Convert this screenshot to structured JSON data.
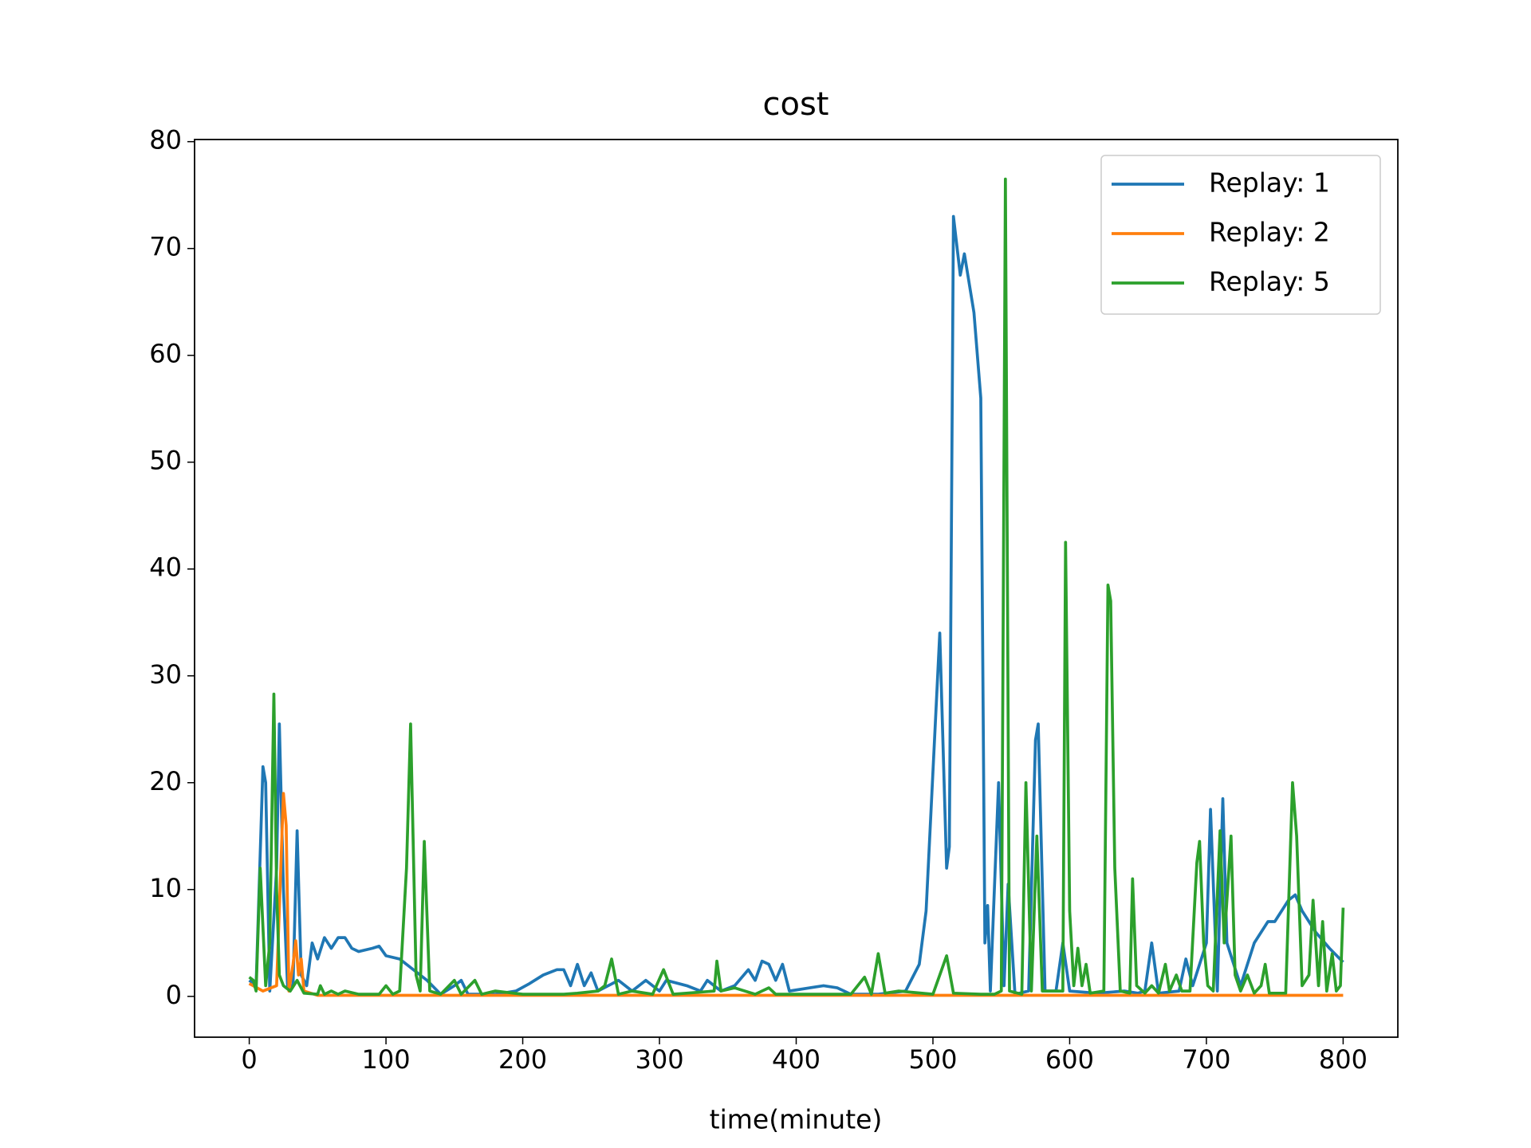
{
  "chart_data": {
    "type": "line",
    "title": "cost",
    "x_label": "time(minute)",
    "xlim": [
      -40,
      840
    ],
    "ylim": [
      -3.82,
      80.2
    ],
    "xticks": [
      0,
      100,
      200,
      300,
      400,
      500,
      600,
      700,
      800
    ],
    "yticks": [
      0,
      10,
      20,
      30,
      40,
      50,
      60,
      70,
      80
    ],
    "legend": "upper right",
    "grid": false,
    "series": [
      {
        "name": "Replay: 1",
        "color": "#1f77b4",
        "x": [
          0,
          5,
          10,
          12,
          15,
          20,
          22,
          25,
          28,
          32,
          35,
          38,
          42,
          46,
          50,
          55,
          60,
          65,
          70,
          75,
          80,
          90,
          95,
          100,
          110,
          120,
          130,
          140,
          150,
          155,
          160,
          180,
          195,
          205,
          215,
          225,
          230,
          235,
          240,
          245,
          250,
          255,
          270,
          280,
          290,
          300,
          305,
          320,
          330,
          335,
          345,
          355,
          365,
          370,
          375,
          380,
          385,
          390,
          395,
          410,
          420,
          430,
          440,
          460,
          480,
          490,
          495,
          505,
          510,
          512,
          515,
          520,
          523,
          530,
          535,
          538,
          540,
          542,
          548,
          552,
          555,
          560,
          570,
          575,
          577,
          582,
          590,
          595,
          600,
          620,
          640,
          650,
          655,
          660,
          665,
          680,
          685,
          690,
          700,
          703,
          708,
          712,
          715,
          725,
          730,
          735,
          745,
          750,
          755,
          760,
          765,
          770,
          780,
          790,
          800
        ],
        "values": [
          1.5,
          1,
          21.5,
          20,
          0.5,
          12,
          25.5,
          10,
          1,
          1,
          15.5,
          2,
          1,
          5,
          3.5,
          5.5,
          4.5,
          5.5,
          5.5,
          4.5,
          4.2,
          4.5,
          4.7,
          3.8,
          3.5,
          2.5,
          1.5,
          0.2,
          1,
          1.5,
          0.2,
          0.2,
          0.5,
          1.2,
          2,
          2.5,
          2.5,
          1,
          3,
          1,
          2.2,
          0.5,
          1.5,
          0.5,
          1.5,
          0.5,
          1.5,
          1,
          0.5,
          1.5,
          0.5,
          1,
          2.5,
          1.5,
          3.3,
          3,
          1.5,
          3,
          0.5,
          0.8,
          1,
          0.8,
          0.2,
          0.2,
          0.5,
          3,
          8,
          34,
          12,
          14,
          73,
          67.5,
          69.5,
          64,
          56,
          5,
          8.5,
          0.5,
          20,
          1,
          10.5,
          0.2,
          0.5,
          24,
          25.5,
          0.5,
          0.5,
          5,
          0.5,
          0.3,
          0.5,
          0.3,
          0.5,
          5,
          0.3,
          0.5,
          3.5,
          1,
          5,
          17.5,
          0.5,
          18.5,
          5,
          1,
          3,
          5,
          7,
          7,
          8,
          9,
          9.5,
          8,
          6,
          4.5,
          3.2
        ]
      },
      {
        "name": "Replay: 2",
        "color": "#ff7f0e",
        "x": [
          0,
          10,
          20,
          25,
          27,
          29,
          32,
          34,
          36,
          38,
          40,
          50,
          800
        ],
        "values": [
          1.2,
          0.5,
          1,
          19,
          16,
          0.5,
          3,
          5.2,
          2,
          3.5,
          0.5,
          0.1,
          0.1
        ]
      },
      {
        "name": "Replay: 5",
        "color": "#2ca02c",
        "x": [
          0,
          3,
          5,
          8,
          12,
          15,
          18,
          20,
          22,
          25,
          30,
          35,
          40,
          50,
          52,
          55,
          60,
          65,
          70,
          80,
          95,
          100,
          105,
          110,
          115,
          118,
          122,
          125,
          128,
          132,
          140,
          150,
          155,
          165,
          170,
          180,
          200,
          230,
          240,
          255,
          260,
          265,
          270,
          280,
          295,
          303,
          310,
          340,
          342,
          345,
          355,
          370,
          380,
          385,
          400,
          440,
          450,
          455,
          460,
          465,
          475,
          500,
          510,
          515,
          535,
          545,
          550,
          553,
          556,
          565,
          568,
          572,
          576,
          580,
          588,
          595,
          597,
          600,
          603,
          606,
          609,
          612,
          615,
          625,
          628,
          630,
          633,
          637,
          644,
          646,
          649,
          655,
          660,
          665,
          670,
          673,
          678,
          682,
          688,
          693,
          695,
          698,
          701,
          705,
          710,
          713,
          718,
          721,
          725,
          730,
          735,
          740,
          743,
          746,
          758,
          763,
          766,
          770,
          775,
          778,
          782,
          785,
          788,
          792,
          795,
          798,
          800
        ],
        "values": [
          1.8,
          1.5,
          0.5,
          12,
          1,
          5,
          28.3,
          10,
          2,
          1,
          0.5,
          1.5,
          0.3,
          0.2,
          1,
          0.2,
          0.5,
          0.2,
          0.5,
          0.2,
          0.2,
          1,
          0.2,
          0.5,
          12,
          25.5,
          2,
          0.5,
          14.5,
          0.5,
          0.2,
          1.5,
          0.2,
          1.5,
          0.2,
          0.5,
          0.2,
          0.2,
          0.3,
          0.5,
          1,
          3.5,
          0.2,
          0.5,
          0.2,
          2.5,
          0.2,
          0.5,
          3.3,
          0.5,
          0.8,
          0.2,
          0.8,
          0.2,
          0.2,
          0.2,
          1.8,
          0.2,
          4,
          0.3,
          0.5,
          0.2,
          3.8,
          0.3,
          0.2,
          0.2,
          0.5,
          76.5,
          0.5,
          0.2,
          20,
          0.5,
          15,
          0.5,
          0.5,
          0.5,
          42.5,
          8,
          1,
          4.5,
          1,
          3,
          0.3,
          0.5,
          38.5,
          37,
          12,
          0.5,
          0.3,
          11,
          1,
          0.3,
          1,
          0.3,
          3,
          0.5,
          2,
          0.5,
          0.5,
          12.5,
          14.5,
          5,
          1,
          0.5,
          15.5,
          5,
          15,
          2,
          0.5,
          2,
          0.3,
          1,
          3,
          0.3,
          0.3,
          20,
          15,
          1,
          2,
          9,
          1,
          7,
          0.5,
          4,
          0.5,
          1,
          8.3
        ]
      }
    ]
  }
}
